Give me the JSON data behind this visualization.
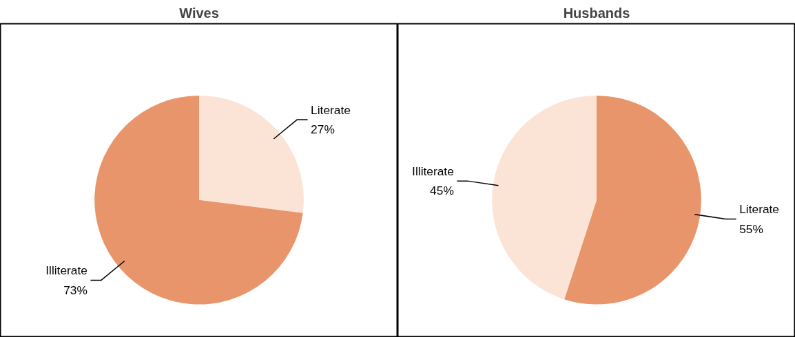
{
  "chart_data": [
    {
      "type": "pie",
      "title": "Wives",
      "categories": [
        "Literate",
        "Illiterate"
      ],
      "values": [
        27,
        73
      ],
      "value_labels": [
        "27%",
        "73%"
      ],
      "colors": [
        "#fbe4d5",
        "#e9956b"
      ]
    },
    {
      "type": "pie",
      "title": "Husbands",
      "categories": [
        "Literate",
        "Illiterate"
      ],
      "values": [
        55,
        45
      ],
      "value_labels": [
        "55%",
        "45%"
      ],
      "colors": [
        "#e9956b",
        "#fbe4d5"
      ]
    }
  ]
}
